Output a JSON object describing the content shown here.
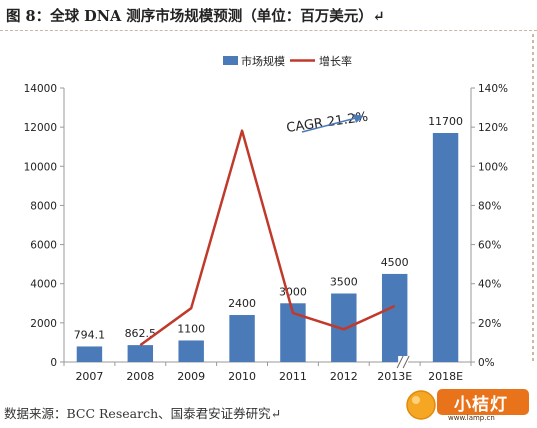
{
  "title": "图 8：全球 DNA 测序市场规模预测（单位：百万美元）↵",
  "source": "数据来源：BCC Research、国泰君安证券研究↵",
  "logo": {
    "text": "小桔灯",
    "url": "www.lamp.cn"
  },
  "chart_data": {
    "type": "bar",
    "categories": [
      "2007",
      "2008",
      "2009",
      "2010",
      "2011",
      "2012",
      "2013E",
      "2018E"
    ],
    "series": [
      {
        "name": "市场规模",
        "type": "bar",
        "axis": "left",
        "color": "#4a7ab8",
        "values": [
          794.1,
          862.5,
          1100,
          2400,
          3000,
          3500,
          4500,
          11700
        ],
        "labels": [
          "794.1",
          "862.5",
          "1100",
          "2400",
          "3000",
          "3500",
          "4500",
          "11700"
        ]
      },
      {
        "name": "增长率",
        "type": "line",
        "axis": "right",
        "color": "#c0392b",
        "values": [
          null,
          0.086,
          0.275,
          1.182,
          0.25,
          0.167,
          0.286,
          null
        ]
      }
    ],
    "ylim": [
      0,
      14000
    ],
    "yticks": [
      "0",
      "2000",
      "4000",
      "6000",
      "8000",
      "10000",
      "12000",
      "14000"
    ],
    "y2lim": [
      0,
      1.4
    ],
    "y2ticks": [
      "0%",
      "20%",
      "40%",
      "60%",
      "80%",
      "100%",
      "120%",
      "140%"
    ],
    "legend_position": "top-center",
    "annotation": "CAGR 21.2%",
    "axis_break_after": "2013E",
    "grid": false
  }
}
